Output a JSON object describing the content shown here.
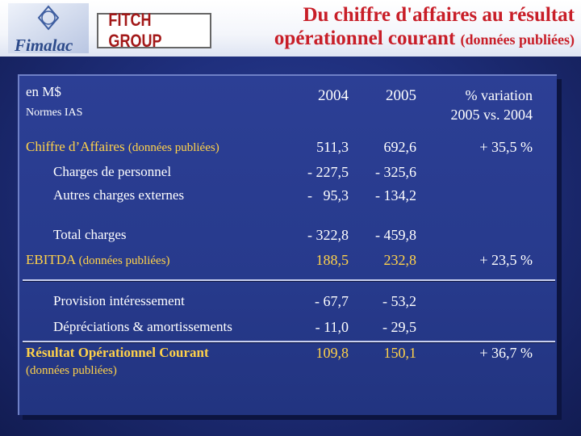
{
  "header": {
    "logo_text": "Fimalac",
    "brand": "FITCH GROUP",
    "title_line1": "Du chiffre d'affaires au résultat",
    "title_line2": "opérationnel courant",
    "title_note": "(données publiées)"
  },
  "table": {
    "unit": "en M$",
    "norms": "Normes IAS",
    "col_2004": "2004",
    "col_2005": "2005",
    "col_var_1": "% variation",
    "col_var_2": "2005 vs. 2004",
    "rows": [
      {
        "label": "Chiffre d’Affaires",
        "note": "(données publiées)",
        "v2004": "511,3",
        "v2005": "692,6",
        "var": "+   35,5 %"
      },
      {
        "label": "Charges de personnel",
        "v2004": "- 227,5",
        "v2005": "- 325,6"
      },
      {
        "label": "Autres charges externes",
        "v2004": "-   95,3",
        "v2005": "- 134,2"
      },
      {
        "label": "Total charges",
        "v2004": "- 322,8",
        "v2005": "- 459,8"
      },
      {
        "label": "EBITDA",
        "note": "(données publiées)",
        "v2004": "188,5",
        "v2005": "232,8",
        "var": "+   23,5 %"
      },
      {
        "label": "Provision intéressement",
        "v2004": "- 67,7",
        "v2005": "- 53,2"
      },
      {
        "label": "Dépréciations & amortissements",
        "v2004": "- 11,0",
        "v2005": "- 29,5"
      },
      {
        "label": "Résultat Opérationnel Courant",
        "note": "(données publiées)",
        "v2004": "109,8",
        "v2005": "150,1",
        "var": "+   36,7 %"
      }
    ]
  },
  "colors": {
    "title": "#c81e28",
    "highlight": "#ffd24a",
    "background": "#1f2f7d"
  }
}
